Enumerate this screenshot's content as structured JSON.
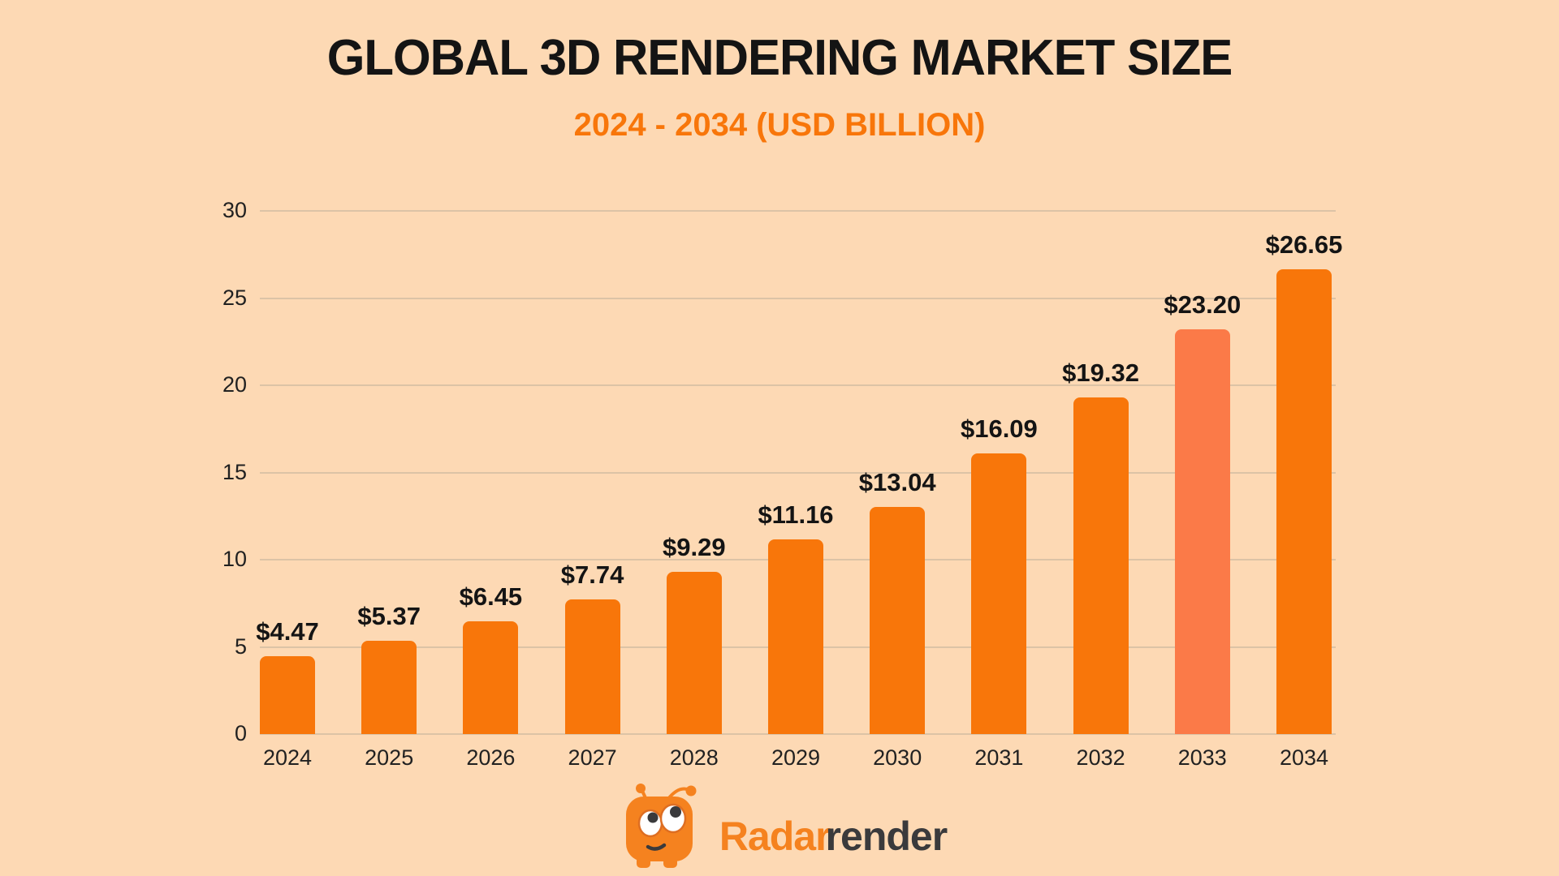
{
  "poster": {
    "title": "GLOBAL 3D RENDERING MARKET SIZE",
    "subtitle": "2024 - 2034 (USD BILLION)"
  },
  "chart_data": {
    "type": "bar",
    "title": "GLOBAL 3D RENDERING MARKET SIZE",
    "subtitle": "2024 - 2034 (USD BILLION)",
    "categories": [
      "2024",
      "2025",
      "2026",
      "2027",
      "2028",
      "2029",
      "2030",
      "2031",
      "2032",
      "2033",
      "2034"
    ],
    "values": [
      4.47,
      5.37,
      6.45,
      7.74,
      9.29,
      11.16,
      13.04,
      16.09,
      19.32,
      23.2,
      26.65
    ],
    "value_labels": [
      "$4.47",
      "$5.37",
      "$6.45",
      "$7.74",
      "$9.29",
      "$11.16",
      "$13.04",
      "$16.09",
      "$19.32",
      "$23.20",
      "$26.65"
    ],
    "unit": "USD BILLION",
    "highlighted_category": "2033",
    "ylim": [
      0,
      30
    ],
    "yticks": [
      0,
      5,
      10,
      15,
      20,
      25,
      30
    ],
    "grid": true,
    "legend": false
  },
  "branding": {
    "brand_first": "Radar",
    "brand_second": "render"
  },
  "colors": {
    "background": "#FDD9B4",
    "bar": "#F8760A",
    "bar_highlight": "#FB7A48",
    "title": "#141414",
    "subtitle": "#F8760A",
    "axis_text": "#212121",
    "gridline": "#DCC3A6",
    "brand_orange": "#F5821F",
    "brand_dark": "#3A3A3C",
    "mascot_eye_white": "#FFFFFF",
    "mascot_pupil": "#3A3A3C"
  }
}
